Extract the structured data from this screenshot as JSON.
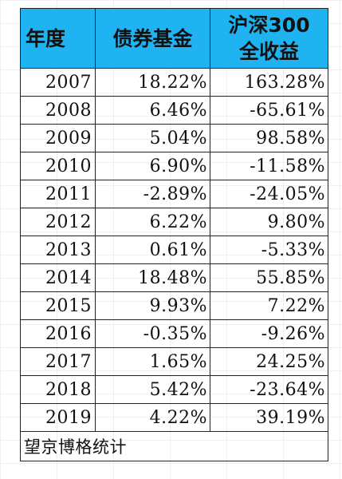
{
  "table": {
    "headers": {
      "year": "年度",
      "bond": "债券基金",
      "index_line1": "沪深300",
      "index_line2": "全收益"
    },
    "rows": [
      {
        "year": "2007",
        "bond": "18.22%",
        "index": "163.28%"
      },
      {
        "year": "2008",
        "bond": "6.46%",
        "index": "-65.61%"
      },
      {
        "year": "2009",
        "bond": "5.04%",
        "index": "98.58%"
      },
      {
        "year": "2010",
        "bond": "6.90%",
        "index": "-11.58%"
      },
      {
        "year": "2011",
        "bond": "-2.89%",
        "index": "-24.05%"
      },
      {
        "year": "2012",
        "bond": "6.22%",
        "index": "9.80%"
      },
      {
        "year": "2013",
        "bond": "0.61%",
        "index": "-5.33%"
      },
      {
        "year": "2014",
        "bond": "18.48%",
        "index": "55.85%"
      },
      {
        "year": "2015",
        "bond": "9.93%",
        "index": "7.22%"
      },
      {
        "year": "2016",
        "bond": "-0.35%",
        "index": "-9.26%"
      },
      {
        "year": "2017",
        "bond": "1.65%",
        "index": "24.25%"
      },
      {
        "year": "2018",
        "bond": "5.42%",
        "index": "-23.64%"
      },
      {
        "year": "2019",
        "bond": "4.22%",
        "index": "39.19%"
      }
    ],
    "source": "望京博格统计"
  },
  "colors": {
    "header_bg": "#1fb3f2",
    "border": "#222222"
  }
}
